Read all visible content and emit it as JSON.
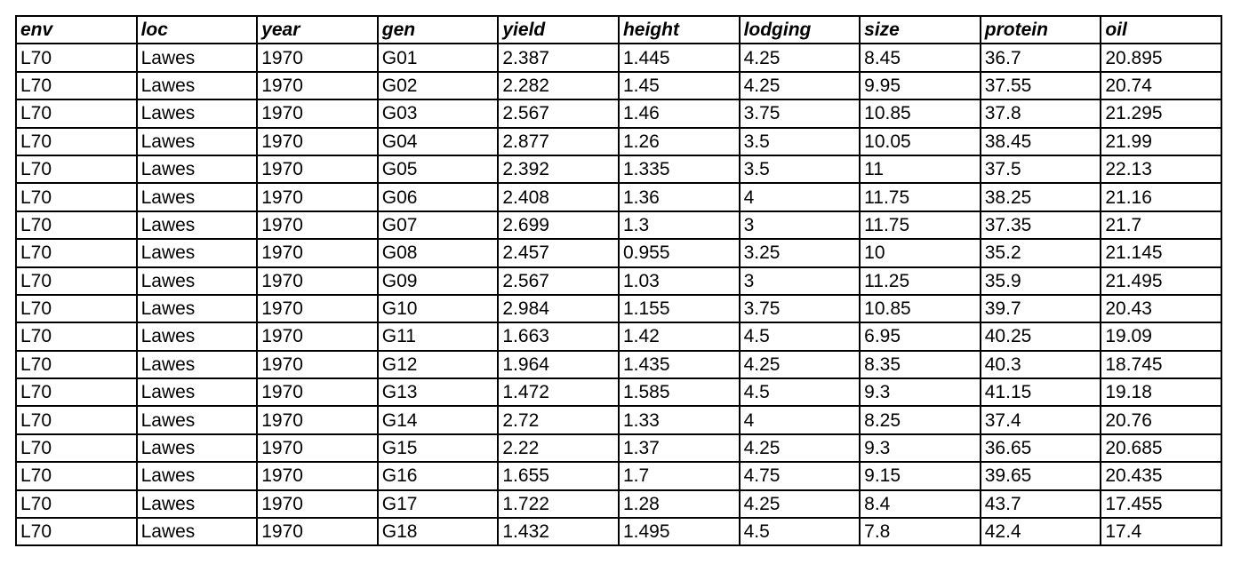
{
  "table": {
    "headers": [
      "env",
      "loc",
      "year",
      "gen",
      "yield",
      "height",
      "lodging",
      "size",
      "protein",
      "oil"
    ],
    "rows": [
      [
        "L70",
        "Lawes",
        "1970",
        "G01",
        "2.387",
        "1.445",
        "4.25",
        "8.45",
        "36.7",
        "20.895"
      ],
      [
        "L70",
        "Lawes",
        "1970",
        "G02",
        "2.282",
        "1.45",
        "4.25",
        "9.95",
        "37.55",
        "20.74"
      ],
      [
        "L70",
        "Lawes",
        "1970",
        "G03",
        "2.567",
        "1.46",
        "3.75",
        "10.85",
        "37.8",
        "21.295"
      ],
      [
        "L70",
        "Lawes",
        "1970",
        "G04",
        "2.877",
        "1.26",
        "3.5",
        "10.05",
        "38.45",
        "21.99"
      ],
      [
        "L70",
        "Lawes",
        "1970",
        "G05",
        "2.392",
        "1.335",
        "3.5",
        "11",
        "37.5",
        "22.13"
      ],
      [
        "L70",
        "Lawes",
        "1970",
        "G06",
        "2.408",
        "1.36",
        "4",
        "11.75",
        "38.25",
        "21.16"
      ],
      [
        "L70",
        "Lawes",
        "1970",
        "G07",
        "2.699",
        "1.3",
        "3",
        "11.75",
        "37.35",
        "21.7"
      ],
      [
        "L70",
        "Lawes",
        "1970",
        "G08",
        "2.457",
        "0.955",
        "3.25",
        "10",
        "35.2",
        "21.145"
      ],
      [
        "L70",
        "Lawes",
        "1970",
        "G09",
        "2.567",
        "1.03",
        "3",
        "11.25",
        "35.9",
        "21.495"
      ],
      [
        "L70",
        "Lawes",
        "1970",
        "G10",
        "2.984",
        "1.155",
        "3.75",
        "10.85",
        "39.7",
        "20.43"
      ],
      [
        "L70",
        "Lawes",
        "1970",
        "G11",
        "1.663",
        "1.42",
        "4.5",
        "6.95",
        "40.25",
        "19.09"
      ],
      [
        "L70",
        "Lawes",
        "1970",
        "G12",
        "1.964",
        "1.435",
        "4.25",
        "8.35",
        "40.3",
        "18.745"
      ],
      [
        "L70",
        "Lawes",
        "1970",
        "G13",
        "1.472",
        "1.585",
        "4.5",
        "9.3",
        "41.15",
        "19.18"
      ],
      [
        "L70",
        "Lawes",
        "1970",
        "G14",
        "2.72",
        "1.33",
        "4",
        "8.25",
        "37.4",
        "20.76"
      ],
      [
        "L70",
        "Lawes",
        "1970",
        "G15",
        "2.22",
        "1.37",
        "4.25",
        "9.3",
        "36.65",
        "20.685"
      ],
      [
        "L70",
        "Lawes",
        "1970",
        "G16",
        "1.655",
        "1.7",
        "4.75",
        "9.15",
        "39.65",
        "20.435"
      ],
      [
        "L70",
        "Lawes",
        "1970",
        "G17",
        "1.722",
        "1.28",
        "4.25",
        "8.4",
        "43.7",
        "17.455"
      ],
      [
        "L70",
        "Lawes",
        "1970",
        "G18",
        "1.432",
        "1.495",
        "4.5",
        "7.8",
        "42.4",
        "17.4"
      ]
    ]
  }
}
